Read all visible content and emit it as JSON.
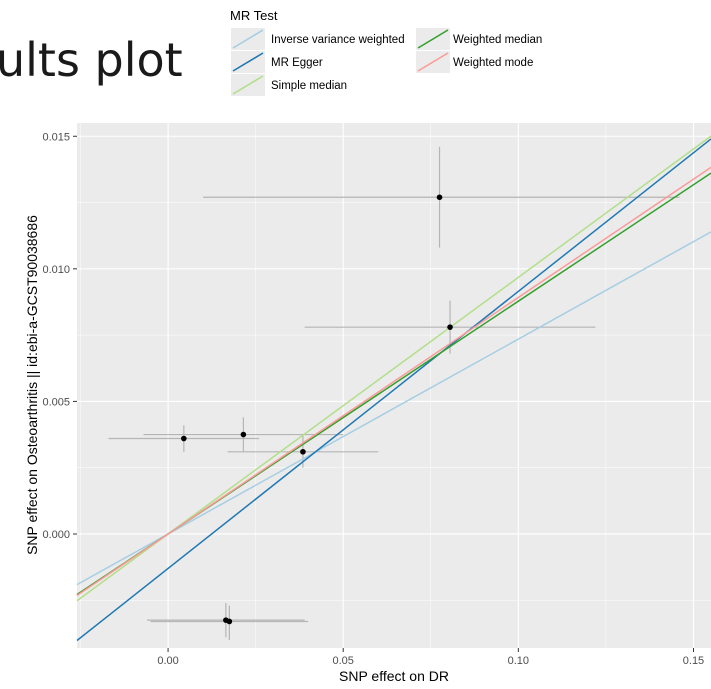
{
  "page_title_fragment": "ults plot",
  "chart_data": {
    "type": "scatter",
    "xlabel": "SNP effect on DR",
    "ylabel": "SNP effect on Osteoarthritis || id:ebi-a-GCST90038686",
    "xlim": [
      -0.026,
      0.155
    ],
    "ylim": [
      -0.0043,
      0.0155
    ],
    "x_ticks": [
      0.0,
      0.05,
      0.1,
      0.15
    ],
    "x_tick_labels": [
      "0.00",
      "0.05",
      "0.10",
      "0.15"
    ],
    "y_ticks": [
      0.0,
      0.005,
      0.01,
      0.015
    ],
    "y_tick_labels": [
      "0.000",
      "0.005",
      "0.010",
      "0.015"
    ],
    "grid": true,
    "points": [
      {
        "x": 0.0045,
        "y": 0.0036,
        "x_lo": -0.017,
        "x_hi": 0.026,
        "y_lo": 0.0031,
        "y_hi": 0.0041
      },
      {
        "x": 0.0215,
        "y": 0.00375,
        "x_lo": -0.007,
        "x_hi": 0.05,
        "y_lo": 0.0031,
        "y_hi": 0.0044
      },
      {
        "x": 0.0385,
        "y": 0.0031,
        "x_lo": 0.017,
        "x_hi": 0.06,
        "y_lo": 0.0025,
        "y_hi": 0.0037
      },
      {
        "x": 0.0775,
        "y": 0.0127,
        "x_lo": 0.01,
        "x_hi": 0.146,
        "y_lo": 0.0108,
        "y_hi": 0.0146
      },
      {
        "x": 0.0805,
        "y": 0.0078,
        "x_lo": 0.039,
        "x_hi": 0.122,
        "y_lo": 0.0068,
        "y_hi": 0.0088
      },
      {
        "x": 0.0165,
        "y": -0.00325,
        "x_lo": -0.006,
        "x_hi": 0.039,
        "y_lo": -0.0039,
        "y_hi": -0.0026
      },
      {
        "x": 0.0175,
        "y": -0.0033,
        "x_lo": -0.005,
        "x_hi": 0.04,
        "y_lo": -0.004,
        "y_hi": -0.0027
      }
    ],
    "legend": {
      "title": "MR Test",
      "placement": "top",
      "entries": [
        {
          "label": "Inverse variance weighted",
          "color": "#a6cee3"
        },
        {
          "label": "MR Egger",
          "color": "#1f78b4"
        },
        {
          "label": "Simple median",
          "color": "#b2df8a"
        },
        {
          "label": "Weighted median",
          "color": "#33a02c"
        },
        {
          "label": "Weighted mode",
          "color": "#fb9a99"
        }
      ]
    },
    "series": [
      {
        "name": "Inverse variance weighted",
        "color": "#a6cee3",
        "intercept": 0,
        "slope": 0.0735
      },
      {
        "name": "MR Egger",
        "color": "#1f78b4",
        "intercept": -0.0013,
        "slope": 0.1045
      },
      {
        "name": "Simple median",
        "color": "#b2df8a",
        "intercept": 0,
        "slope": 0.0968
      },
      {
        "name": "Weighted median",
        "color": "#33a02c",
        "intercept": 0,
        "slope": 0.0878
      },
      {
        "name": "Weighted mode",
        "color": "#fb9a99",
        "intercept": 0,
        "slope": 0.0892
      }
    ]
  }
}
